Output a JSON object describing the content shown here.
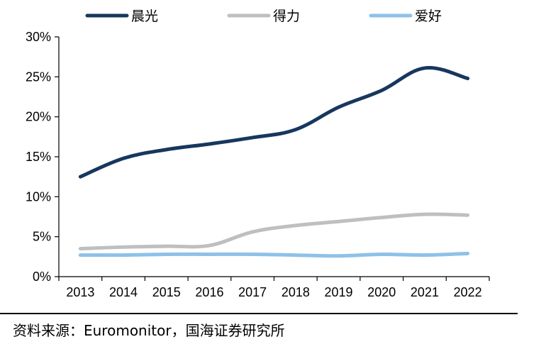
{
  "chart_data": {
    "type": "line",
    "categories": [
      "2013",
      "2014",
      "2015",
      "2016",
      "2017",
      "2018",
      "2019",
      "2020",
      "2021",
      "2022"
    ],
    "series": [
      {
        "name": "晨光",
        "color": "#17375e",
        "values": [
          12.5,
          14.8,
          15.9,
          16.6,
          17.4,
          18.4,
          21.2,
          23.3,
          26.1,
          24.8
        ]
      },
      {
        "name": "得力",
        "color": "#bfbfbf",
        "values": [
          3.5,
          3.7,
          3.8,
          3.9,
          5.6,
          6.4,
          6.9,
          7.4,
          7.8,
          7.7
        ]
      },
      {
        "name": "爱好",
        "color": "#8ec1e8",
        "values": [
          2.7,
          2.7,
          2.8,
          2.8,
          2.8,
          2.7,
          2.6,
          2.8,
          2.7,
          2.9
        ]
      }
    ],
    "y_ticks": [
      "0%",
      "5%",
      "10%",
      "15%",
      "20%",
      "25%",
      "30%"
    ],
    "ylim": [
      0,
      30
    ],
    "y_unit": "%",
    "grid": false,
    "legend_position": "top"
  },
  "source_note": "资料来源：Euromonitor，国海证券研究所"
}
